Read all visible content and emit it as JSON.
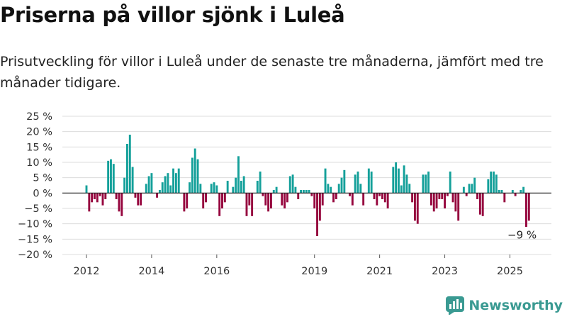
{
  "header": {
    "title": "Priserna på villor sjönk i Luleå",
    "subtitle": "Prisutveckling för villor i Luleå under de senaste tre månaderna, jämfört med tre månader tidigare."
  },
  "brand": {
    "name": "Newsworthy",
    "color": "#3a9a92"
  },
  "colors": {
    "positive": "#14a09a",
    "negative": "#96063e"
  },
  "chart_data": {
    "type": "bar",
    "ylim": [
      -20,
      25
    ],
    "yticks": [
      25,
      20,
      15,
      10,
      5,
      0,
      -5,
      -10,
      -15,
      -20
    ],
    "ytick_labels": [
      "25 %",
      "20 %",
      "15 %",
      "10 %",
      "5 %",
      "0 %",
      "−5 %",
      "−10 %",
      "−15 %",
      "−20 %"
    ],
    "grid": true,
    "xticks": [
      {
        "label": "2012",
        "date": "2012-01"
      },
      {
        "label": "2014",
        "date": "2014-01"
      },
      {
        "label": "2016",
        "date": "2016-01"
      },
      {
        "label": "2019",
        "date": "2019-01"
      },
      {
        "label": "2021",
        "date": "2021-01"
      },
      {
        "label": "2023",
        "date": "2023-01"
      },
      {
        "label": "2025",
        "date": "2025-01"
      }
    ],
    "start": "2012-01",
    "values": [
      2.5,
      -6,
      -3,
      -2,
      -3,
      -1,
      -4,
      -2,
      10.5,
      11,
      9.5,
      -2,
      -6,
      -7.5,
      5,
      16,
      19,
      8.5,
      -1.5,
      -4,
      -4,
      0,
      3,
      5.5,
      6.5,
      0,
      -1.5,
      1,
      3.5,
      5.5,
      6.5,
      2.5,
      8,
      6.5,
      8,
      0,
      -6,
      -5,
      3.5,
      11.5,
      14.5,
      11,
      3,
      -5,
      -3,
      0,
      3,
      3.5,
      2.5,
      -7.5,
      -5,
      -3,
      4,
      0,
      2,
      5,
      12,
      4,
      5.5,
      -7.5,
      -4,
      -7.5,
      0,
      4,
      7,
      -1,
      -4,
      -6,
      -5,
      1,
      2,
      0,
      -4,
      -5,
      -3,
      5.5,
      6,
      2,
      -2,
      1,
      1,
      1,
      1,
      -1,
      -5,
      -14,
      -9,
      -4,
      8,
      3,
      2,
      -3,
      -2,
      3,
      5,
      7.5,
      0,
      -1,
      -4,
      6,
      7,
      3,
      -4,
      0,
      8,
      7,
      -2,
      -4,
      -1,
      -2,
      -3,
      -5,
      0,
      8.5,
      10,
      8,
      2.5,
      9,
      6,
      3,
      -3,
      -9,
      -10,
      0,
      6,
      6,
      7,
      -4,
      -6,
      -5,
      -2,
      -2,
      -5,
      -1,
      7,
      -3,
      -6,
      -9,
      0,
      2,
      -1,
      3,
      3,
      5,
      -2,
      -7,
      -7.5,
      0,
      4.5,
      7,
      7,
      6,
      1,
      1,
      -3,
      0,
      0,
      1,
      -1,
      0,
      1,
      2,
      -11,
      -9
    ],
    "annotations": [
      {
        "text": "−9 %",
        "date": "2025-06"
      }
    ]
  }
}
